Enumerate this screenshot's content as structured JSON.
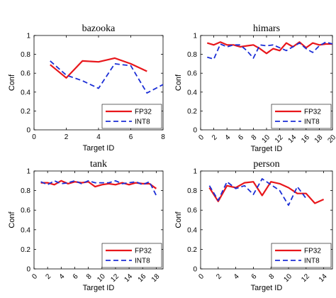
{
  "chart_data": [
    {
      "type": "line",
      "title": "bazooka",
      "xlabel": "Target ID",
      "ylabel": "Conf",
      "xlim": [
        0,
        8
      ],
      "ylim": [
        0,
        1
      ],
      "xticks": [
        0,
        2,
        4,
        6,
        8
      ],
      "yticks": [
        0,
        0.2,
        0.4,
        0.6,
        0.8,
        1
      ],
      "legend": "bottom-right",
      "series": [
        {
          "name": "FP32",
          "color": "#e8161b",
          "style": "solid",
          "x": [
            1,
            2,
            3,
            4,
            5,
            6,
            7
          ],
          "y": [
            0.69,
            0.55,
            0.73,
            0.72,
            0.76,
            0.7,
            0.62
          ]
        },
        {
          "name": "INT8",
          "color": "#1c2fd6",
          "style": "dashed",
          "x": [
            1,
            2,
            3,
            4,
            5,
            6,
            7,
            8
          ],
          "y": [
            0.73,
            0.58,
            0.52,
            0.44,
            0.7,
            0.68,
            0.39,
            0.48
          ]
        }
      ]
    },
    {
      "type": "line",
      "title": "himars",
      "xlabel": "Target ID",
      "ylabel": "Conf",
      "xlim": [
        0,
        20
      ],
      "ylim": [
        0,
        1
      ],
      "xticks": [
        0,
        2,
        4,
        6,
        8,
        10,
        12,
        14,
        16,
        18,
        20
      ],
      "yticks": [
        0,
        0.2,
        0.4,
        0.6,
        0.8,
        1
      ],
      "legend": "bottom-right",
      "series": [
        {
          "name": "FP32",
          "color": "#e8161b",
          "style": "solid",
          "x": [
            1,
            2,
            3,
            4,
            5,
            6,
            7,
            8,
            9,
            10,
            11,
            12,
            13,
            14,
            15,
            16,
            17,
            18,
            19,
            20
          ],
          "y": [
            0.92,
            0.9,
            0.93,
            0.9,
            0.9,
            0.88,
            0.89,
            0.9,
            0.86,
            0.81,
            0.86,
            0.84,
            0.92,
            0.88,
            0.93,
            0.87,
            0.92,
            0.9,
            0.91,
            0.91
          ]
        },
        {
          "name": "INT8",
          "color": "#1c2fd6",
          "style": "dashed",
          "x": [
            1,
            2,
            3,
            4,
            5,
            6,
            7,
            8,
            9,
            10,
            11,
            12,
            13,
            14,
            15,
            16,
            17,
            18,
            19,
            20
          ],
          "y": [
            0.77,
            0.75,
            0.91,
            0.88,
            0.9,
            0.9,
            0.84,
            0.76,
            0.9,
            0.89,
            0.9,
            0.87,
            0.84,
            0.88,
            0.92,
            0.86,
            0.82,
            0.89,
            0.93,
            0.91
          ]
        }
      ]
    },
    {
      "type": "line",
      "title": "tank",
      "xlabel": "Target ID",
      "ylabel": "Conf",
      "xlim": [
        0,
        19
      ],
      "ylim": [
        0,
        1
      ],
      "xticks": [
        0,
        2,
        4,
        6,
        8,
        10,
        12,
        14,
        16,
        18
      ],
      "yticks": [
        0,
        0.2,
        0.4,
        0.6,
        0.8,
        1
      ],
      "legend": "bottom-right",
      "series": [
        {
          "name": "FP32",
          "color": "#e8161b",
          "style": "solid",
          "x": [
            1,
            2,
            3,
            4,
            5,
            6,
            7,
            8,
            9,
            10,
            11,
            12,
            13,
            14,
            15,
            16,
            17,
            18
          ],
          "y": [
            0.88,
            0.88,
            0.86,
            0.9,
            0.87,
            0.89,
            0.88,
            0.89,
            0.84,
            0.86,
            0.87,
            0.86,
            0.88,
            0.86,
            0.88,
            0.87,
            0.87,
            0.82
          ]
        },
        {
          "name": "INT8",
          "color": "#1c2fd6",
          "style": "dashed",
          "x": [
            1,
            2,
            3,
            4,
            5,
            6,
            7,
            8,
            9,
            10,
            11,
            12,
            13,
            14,
            15,
            16,
            17,
            18
          ],
          "y": [
            0.89,
            0.86,
            0.9,
            0.87,
            0.88,
            0.9,
            0.87,
            0.9,
            0.88,
            0.88,
            0.88,
            0.9,
            0.87,
            0.88,
            0.89,
            0.86,
            0.89,
            0.75
          ]
        }
      ]
    },
    {
      "type": "line",
      "title": "person",
      "xlabel": "Target ID",
      "ylabel": "Conf",
      "xlim": [
        0,
        15
      ],
      "ylim": [
        0,
        1
      ],
      "xticks": [
        0,
        2,
        4,
        6,
        8,
        10,
        12,
        14
      ],
      "yticks": [
        0,
        0.2,
        0.4,
        0.6,
        0.8,
        1
      ],
      "legend": "bottom-right",
      "series": [
        {
          "name": "FP32",
          "color": "#e8161b",
          "style": "solid",
          "x": [
            1,
            2,
            3,
            4,
            5,
            6,
            7,
            8,
            9,
            10,
            11,
            12,
            13,
            14
          ],
          "y": [
            0.83,
            0.69,
            0.85,
            0.83,
            0.88,
            0.89,
            0.75,
            0.89,
            0.87,
            0.83,
            0.77,
            0.77,
            0.67,
            0.71
          ]
        },
        {
          "name": "INT8",
          "color": "#1c2fd6",
          "style": "dashed",
          "x": [
            1,
            2,
            3,
            4,
            5,
            6,
            7,
            8,
            9,
            10,
            11,
            12
          ],
          "y": [
            0.85,
            0.7,
            0.89,
            0.82,
            0.85,
            0.76,
            0.92,
            0.86,
            0.8,
            0.65,
            0.84,
            0.72
          ]
        }
      ]
    }
  ]
}
